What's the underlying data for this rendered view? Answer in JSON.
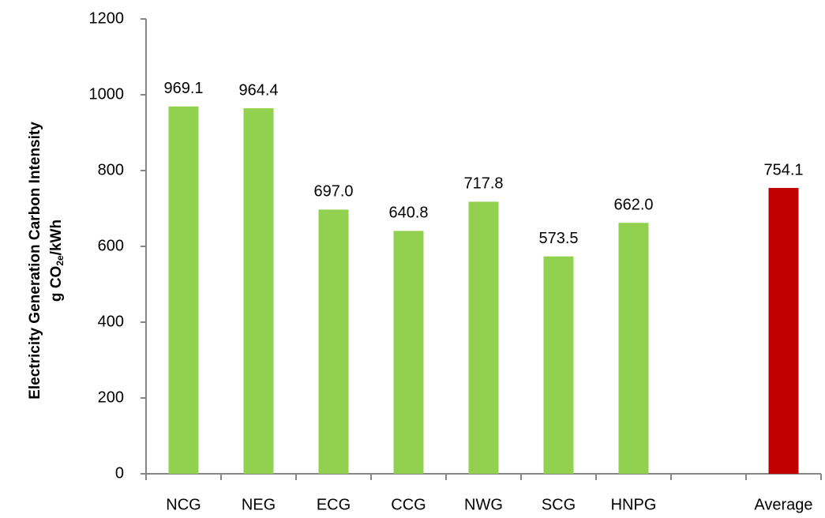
{
  "chart_data": {
    "type": "bar",
    "y_label": [
      "Electricity Generation Carbon Intensity",
      {
        "prefix": "g CO",
        "subscript": "2e",
        "suffix": "/kWh"
      }
    ],
    "categories": [
      "NCG",
      "NEG",
      "ECG",
      "CCG",
      "NWG",
      "SCG",
      "HNPG",
      null,
      "Average"
    ],
    "values": [
      969.1,
      964.4,
      697.0,
      640.8,
      717.8,
      573.5,
      662.0,
      null,
      754.1
    ],
    "value_labels": [
      "969.1",
      "964.4",
      "697.0",
      "640.8",
      "717.8",
      "573.5",
      "662.0",
      null,
      "754.1"
    ],
    "colors": [
      "#92d050",
      "#92d050",
      "#92d050",
      "#92d050",
      "#92d050",
      "#92d050",
      "#92d050",
      null,
      "#c00000"
    ],
    "ylim": [
      0,
      1200
    ],
    "yticks": [
      0,
      200,
      400,
      600,
      800,
      1000,
      1200
    ],
    "grid": false
  }
}
